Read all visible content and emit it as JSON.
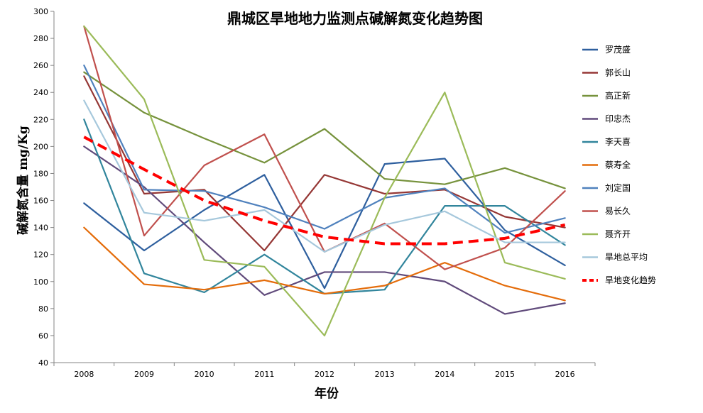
{
  "chart_data": {
    "type": "line",
    "title": "鼎城区旱地地力监测点碱解氮变化趋势图",
    "xlabel": "年份",
    "ylabel": "碱解氮含量   mg/Kg",
    "ylim": [
      40,
      300
    ],
    "ytick_step": 20,
    "yticks": [
      "40",
      "60",
      "80",
      "100",
      "120",
      "140",
      "160",
      "180",
      "200",
      "220",
      "240",
      "260",
      "280",
      "300"
    ],
    "categories": [
      "2008",
      "2009",
      "2010",
      "2011",
      "2012",
      "2013",
      "2014",
      "2015",
      "2016"
    ],
    "grid": false,
    "legend_position": "right",
    "series": [
      {
        "name": "罗茂盛",
        "color": "#2E5F9E",
        "dashed": false,
        "values": [
          158,
          123,
          153,
          179,
          95,
          187,
          191,
          138,
          112
        ]
      },
      {
        "name": "郭长山",
        "color": "#953735",
        "dashed": false,
        "values": [
          252,
          165,
          168,
          123,
          179,
          165,
          168,
          148,
          140
        ]
      },
      {
        "name": "高正新",
        "color": "#76923C",
        "dashed": false,
        "values": [
          255,
          225,
          206,
          188,
          213,
          176,
          172,
          184,
          169
        ]
      },
      {
        "name": "印忠杰",
        "color": "#604A7B",
        "dashed": false,
        "values": [
          200,
          170,
          129,
          90,
          107,
          107,
          100,
          76,
          84
        ]
      },
      {
        "name": "李天喜",
        "color": "#31859C",
        "dashed": false,
        "values": [
          220,
          106,
          92,
          120,
          91,
          94,
          156,
          156,
          127
        ]
      },
      {
        "name": "蔡寿全",
        "color": "#E46C0A",
        "dashed": false,
        "values": [
          140,
          98,
          94,
          101,
          91,
          97,
          114,
          97,
          86
        ]
      },
      {
        "name": "刘定国",
        "color": "#4F81BD",
        "dashed": false,
        "values": [
          260,
          168,
          167,
          155,
          139,
          162,
          169,
          136,
          147
        ]
      },
      {
        "name": "易长久",
        "color": "#C0504D",
        "dashed": false,
        "values": [
          289,
          134,
          186,
          209,
          122,
          143,
          109,
          125,
          167
        ]
      },
      {
        "name": "聂齐开",
        "color": "#9BBB59",
        "dashed": false,
        "values": [
          289,
          235,
          116,
          111,
          60,
          162,
          240,
          114,
          102
        ]
      },
      {
        "name": "旱地总平均",
        "color": "#A6C8DC",
        "dashed": false,
        "values": [
          234,
          151,
          145,
          153,
          122,
          142,
          152,
          129,
          129
        ]
      },
      {
        "name": "旱地变化趋势",
        "color": "#FF0000",
        "dashed": true,
        "values": [
          207,
          183,
          160,
          145,
          133,
          128,
          128,
          132,
          142
        ]
      }
    ]
  }
}
